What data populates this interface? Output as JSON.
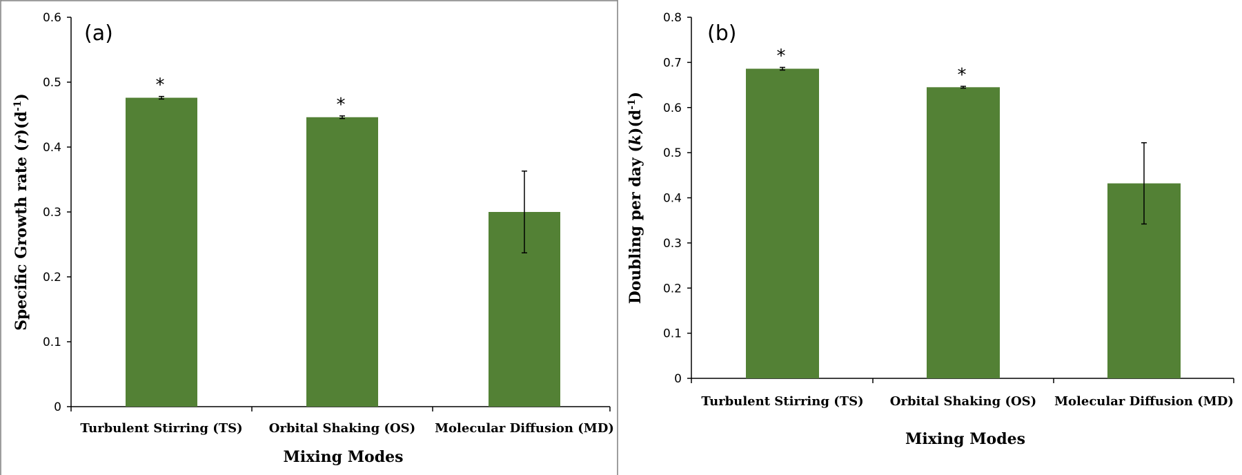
{
  "colors": {
    "bar": "#538135",
    "axis": "#000000",
    "frame": "#7f7f7f"
  },
  "chart_data": [
    {
      "type": "bar",
      "panel_label": "(a)",
      "categories": [
        "Turbulent Stirring (TS)",
        "Orbital Shaking (OS)",
        "Molecular Diffusion (MD)"
      ],
      "values": [
        0.476,
        0.446,
        0.3
      ],
      "errors": [
        0.002,
        0.002,
        0.063
      ],
      "significance": [
        "*",
        "*",
        ""
      ],
      "ylabel_parts": [
        "Specific Growth rate (",
        "r",
        ")(d",
        "-1",
        ")"
      ],
      "xlabel": "Mixing Modes",
      "ylim": [
        0,
        0.6
      ],
      "yticks": [
        "0",
        "0.1",
        "0.2",
        "0.3",
        "0.4",
        "0.5",
        "0.6"
      ],
      "grid": false
    },
    {
      "type": "bar",
      "panel_label": "(b)",
      "categories": [
        "Turbulent Stirring (TS)",
        "Orbital Shaking (OS)",
        "Molecular Diffusion (MD)"
      ],
      "values": [
        0.686,
        0.645,
        0.432
      ],
      "errors": [
        0.003,
        0.002,
        0.09
      ],
      "significance": [
        "*",
        "*",
        ""
      ],
      "ylabel_parts": [
        "Doubling per day (",
        "k",
        ")(d",
        "-1",
        ")"
      ],
      "xlabel": "Mixing Modes",
      "ylim": [
        0,
        0.8
      ],
      "yticks": [
        "0",
        "0.1",
        "0.2",
        "0.3",
        "0.4",
        "0.5",
        "0.6",
        "0.7",
        "0.8"
      ],
      "grid": false
    }
  ]
}
